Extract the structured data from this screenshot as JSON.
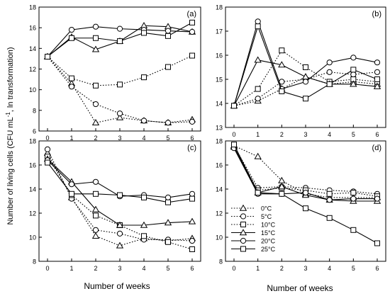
{
  "figure": {
    "ylabel": "Number of living cells (CFU mL",
    "ylabel_sup": "-1",
    "ylabel_tail": ", ln transformation)",
    "xlabel": "Number of weeks"
  },
  "legend": {
    "entries": [
      {
        "label": "0°C",
        "marker": "triangle",
        "dash": "dotted"
      },
      {
        "label": "5°C",
        "marker": "circle",
        "dash": "dotted"
      },
      {
        "label": "10°C",
        "marker": "square",
        "dash": "dotted"
      },
      {
        "label": "15°C",
        "marker": "triangle",
        "dash": "solid"
      },
      {
        "label": "20°C",
        "marker": "circle",
        "dash": "solid"
      },
      {
        "label": "25°C",
        "marker": "square",
        "dash": "solid"
      }
    ]
  },
  "chart_data": [
    {
      "type": "line",
      "panel": "(a)",
      "x": [
        0,
        1,
        2,
        3,
        4,
        5,
        6
      ],
      "xticks": [
        "0",
        "1",
        "2",
        "3",
        "4",
        "5",
        "6"
      ],
      "ylim": [
        6,
        18
      ],
      "yticks": [
        "6",
        "8",
        "10",
        "12",
        "14",
        "16",
        "18"
      ],
      "series": [
        {
          "name": "0°C",
          "marker": "triangle",
          "dash": "dotted",
          "values": [
            13.2,
            10.6,
            6.8,
            7.3,
            7.0,
            6.8,
            7.1
          ]
        },
        {
          "name": "5°C",
          "marker": "circle",
          "dash": "dotted",
          "values": [
            13.2,
            10.3,
            8.6,
            7.7,
            7.0,
            6.8,
            6.9
          ]
        },
        {
          "name": "10°C",
          "marker": "square",
          "dash": "dotted",
          "values": [
            13.2,
            11.1,
            10.4,
            10.5,
            11.2,
            12.2,
            13.3
          ]
        },
        {
          "name": "15°C",
          "marker": "triangle",
          "dash": "solid",
          "values": [
            13.2,
            15.1,
            13.9,
            14.7,
            16.2,
            16.1,
            15.6
          ]
        },
        {
          "name": "20°C",
          "marker": "circle",
          "dash": "solid",
          "values": [
            13.2,
            15.8,
            16.1,
            15.9,
            15.8,
            15.7,
            15.6
          ]
        },
        {
          "name": "25°C",
          "marker": "square",
          "dash": "solid",
          "values": [
            13.2,
            15.0,
            15.0,
            14.7,
            15.5,
            15.2,
            16.5
          ]
        }
      ]
    },
    {
      "type": "line",
      "panel": "(b)",
      "x": [
        0,
        1,
        2,
        3,
        4,
        5,
        6
      ],
      "xticks": [
        "0",
        "1",
        "2",
        "3",
        "4",
        "5",
        "6"
      ],
      "ylim": [
        13,
        18
      ],
      "yticks": [
        "13",
        "14",
        "15",
        "16",
        "17",
        "18"
      ],
      "series": [
        {
          "name": "0°C",
          "marker": "triangle",
          "dash": "dotted",
          "values": [
            13.9,
            14.1,
            14.6,
            15.1,
            14.8,
            14.9,
            14.8
          ]
        },
        {
          "name": "5°C",
          "marker": "circle",
          "dash": "dotted",
          "values": [
            13.9,
            14.2,
            14.9,
            15.0,
            15.3,
            15.2,
            15.3
          ]
        },
        {
          "name": "10°C",
          "marker": "square",
          "dash": "dotted",
          "values": [
            13.9,
            14.6,
            16.2,
            15.5,
            14.9,
            15.0,
            14.9
          ]
        },
        {
          "name": "15°C",
          "marker": "triangle",
          "dash": "solid",
          "values": [
            13.9,
            15.8,
            15.6,
            15.1,
            14.8,
            14.8,
            14.7
          ]
        },
        {
          "name": "20°C",
          "marker": "circle",
          "dash": "solid",
          "values": [
            13.9,
            17.4,
            14.6,
            14.9,
            15.7,
            15.9,
            15.7
          ]
        },
        {
          "name": "25°C",
          "marker": "square",
          "dash": "solid",
          "values": [
            13.9,
            17.2,
            14.5,
            14.2,
            14.8,
            15.4,
            15.0
          ]
        }
      ]
    },
    {
      "type": "line",
      "panel": "(c)",
      "x": [
        0,
        1,
        2,
        3,
        4,
        5,
        6
      ],
      "xticks": [
        "0",
        "1",
        "2",
        "3",
        "4",
        "5",
        "6"
      ],
      "ylim": [
        8,
        18
      ],
      "yticks": [
        "8",
        "10",
        "12",
        "14",
        "16",
        "18"
      ],
      "series": [
        {
          "name": "0°C",
          "marker": "triangle",
          "dash": "dotted",
          "values": [
            17.0,
            13.3,
            10.1,
            9.3,
            9.9,
            9.7,
            9.9
          ]
        },
        {
          "name": "5°C",
          "marker": "circle",
          "dash": "dotted",
          "values": [
            17.3,
            13.2,
            10.6,
            10.3,
            9.8,
            9.8,
            9.7
          ]
        },
        {
          "name": "10°C",
          "marker": "square",
          "dash": "dotted",
          "values": [
            16.7,
            13.5,
            11.8,
            11.0,
            10.1,
            9.6,
            9.0
          ]
        },
        {
          "name": "15°C",
          "marker": "triangle",
          "dash": "solid",
          "values": [
            16.5,
            14.6,
            12.3,
            11.0,
            11.0,
            11.2,
            11.3
          ]
        },
        {
          "name": "20°C",
          "marker": "circle",
          "dash": "solid",
          "values": [
            16.4,
            14.4,
            14.6,
            13.4,
            13.5,
            13.3,
            13.6
          ]
        },
        {
          "name": "25°C",
          "marker": "square",
          "dash": "solid",
          "values": [
            16.2,
            13.6,
            13.6,
            13.5,
            13.3,
            12.9,
            13.2
          ]
        }
      ]
    },
    {
      "type": "line",
      "panel": "(d)",
      "x": [
        0,
        1,
        2,
        3,
        4,
        5,
        6
      ],
      "xticks": [
        "0",
        "1",
        "2",
        "3",
        "4",
        "5",
        "6"
      ],
      "ylim": [
        8,
        18
      ],
      "yticks": [
        "8",
        "10",
        "12",
        "14",
        "16",
        "18"
      ],
      "series": [
        {
          "name": "0°C",
          "marker": "triangle",
          "dash": "dotted",
          "values": [
            17.6,
            16.7,
            14.7,
            13.6,
            13.3,
            13.3,
            13.3
          ]
        },
        {
          "name": "5°C",
          "marker": "circle",
          "dash": "dotted",
          "values": [
            17.6,
            14.1,
            14.2,
            14.1,
            13.9,
            13.8,
            13.6
          ]
        },
        {
          "name": "10°C",
          "marker": "square",
          "dash": "dotted",
          "values": [
            17.5,
            13.9,
            14.1,
            13.9,
            13.6,
            13.7,
            13.4
          ]
        },
        {
          "name": "15°C",
          "marker": "triangle",
          "dash": "solid",
          "values": [
            17.5,
            13.7,
            14.2,
            13.5,
            13.1,
            13.0,
            13.0
          ]
        },
        {
          "name": "20°C",
          "marker": "circle",
          "dash": "solid",
          "values": [
            17.4,
            13.6,
            13.6,
            13.7,
            13.1,
            13.2,
            13.2
          ]
        },
        {
          "name": "25°C",
          "marker": "square",
          "dash": "solid",
          "values": [
            17.7,
            13.7,
            13.6,
            12.4,
            11.6,
            10.6,
            9.5
          ]
        }
      ]
    }
  ]
}
